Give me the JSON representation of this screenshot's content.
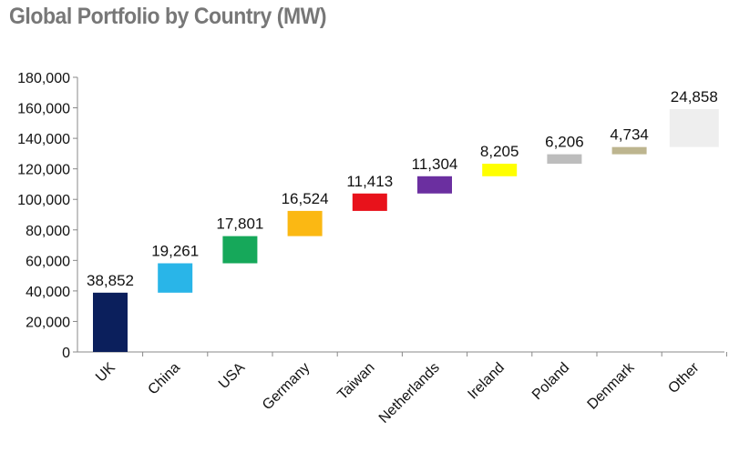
{
  "chart_data": {
    "type": "bar",
    "subtype": "waterfall",
    "title": "Global Portfolio by Country (MW)",
    "xlabel": "",
    "ylabel": "",
    "ylim": [
      0,
      180000
    ],
    "yticks": [
      0,
      20000,
      40000,
      60000,
      80000,
      100000,
      120000,
      140000,
      160000,
      180000
    ],
    "ytick_labels": [
      "0",
      "20,000",
      "40,000",
      "60,000",
      "80,000",
      "100,000",
      "120,000",
      "140,000",
      "160,000",
      "180,000"
    ],
    "grid": false,
    "categories": [
      "UK",
      "China",
      "USA",
      "Germany",
      "Taiwan",
      "Netherlands",
      "Ireland",
      "Poland",
      "Denmark",
      "Other"
    ],
    "values": [
      38852,
      19261,
      17801,
      16524,
      11413,
      11304,
      8205,
      6206,
      4734,
      24858
    ],
    "value_labels": [
      "38,852",
      "19,261",
      "17,801",
      "16,524",
      "11,413",
      "11,304",
      "8,205",
      "6,206",
      "4,734",
      "24,858"
    ],
    "colors": [
      "#0b1f5c",
      "#29b5e8",
      "#16a85a",
      "#fbb813",
      "#e8121b",
      "#6b2fa0",
      "#ffff00",
      "#bdbdbd",
      "#bdb58f",
      "#eeeeee"
    ]
  }
}
